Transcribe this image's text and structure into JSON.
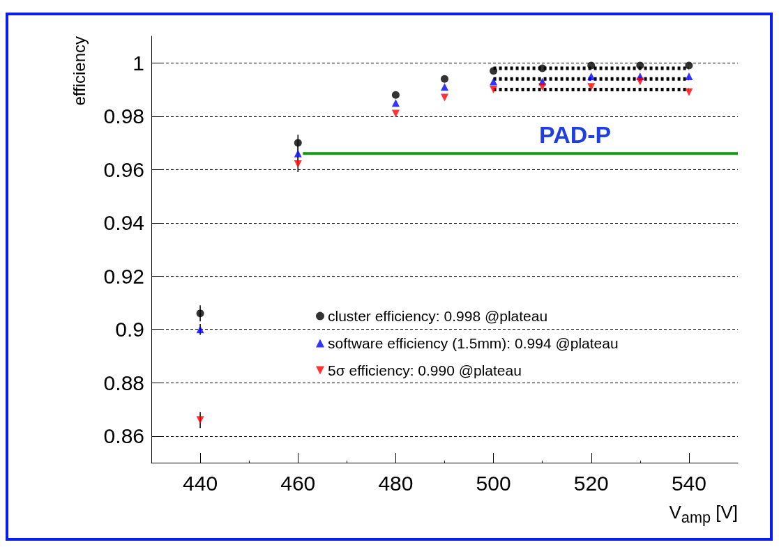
{
  "chart_data": {
    "type": "scatter",
    "xlabel": "V$_{amp}$ [V]",
    "ylabel": "efficiency",
    "xlim": [
      430,
      550
    ],
    "xticks": [
      440,
      460,
      480,
      500,
      520,
      540
    ],
    "ylim": [
      0.85,
      1.01
    ],
    "yticks": [
      0.86,
      0.88,
      0.9,
      0.92,
      0.94,
      0.96,
      0.98,
      1
    ],
    "grid": "y",
    "legend": "bottom",
    "annotations": [
      "PAD-P"
    ],
    "series": [
      {
        "name": "cluster efficiency: 0.998 @plateau",
        "color": "#000000",
        "marker": "circle",
        "x": [
          440,
          460,
          480,
          490,
          500,
          510,
          520,
          530,
          540
        ],
        "values": [
          0.906,
          0.97,
          0.988,
          0.994,
          0.997,
          0.998,
          0.999,
          0.999,
          0.999
        ],
        "errors": [
          0.003,
          0.003,
          null,
          null,
          null,
          null,
          null,
          null,
          null
        ]
      },
      {
        "name": "software efficiency (1.5mm): 0.994 @plateau",
        "color": "#0000ff",
        "marker": "triangle",
        "x": [
          440,
          460,
          480,
          490,
          500,
          510,
          520,
          530,
          540
        ],
        "values": [
          0.9,
          0.966,
          0.985,
          0.991,
          0.993,
          0.993,
          0.995,
          0.995,
          0.995
        ],
        "errors": [
          0.002,
          0.003,
          null,
          null,
          null,
          null,
          null,
          null,
          null
        ]
      },
      {
        "name": "5σ efficiency: 0.990 @plateau",
        "color": "#ff0000",
        "marker": "triangle-down",
        "x": [
          440,
          460,
          480,
          490,
          500,
          510,
          520,
          530,
          540
        ],
        "values": [
          0.866,
          0.962,
          0.981,
          0.987,
          0.99,
          0.991,
          0.991,
          0.993,
          0.989
        ],
        "errors": [
          0.003,
          0.003,
          null,
          null,
          null,
          null,
          null,
          null,
          null
        ]
      },
      {
        "type": "line",
        "color": "#000000",
        "line_style": "dotted",
        "marker": "none",
        "x": [
          500,
          540
        ],
        "values": [
          0.998,
          0.998
        ]
      },
      {
        "type": "line",
        "color": "#000000",
        "line_style": "dotted",
        "marker": "none",
        "x": [
          500,
          540
        ],
        "values": [
          0.994,
          0.994
        ]
      },
      {
        "type": "line",
        "color": "#000000",
        "line_style": "dotted",
        "marker": "none",
        "x": [
          500,
          540
        ],
        "values": [
          0.99,
          0.99
        ]
      },
      {
        "type": "line",
        "color": "#119911",
        "line_style": "solid",
        "marker": "none",
        "x": [
          461,
          550
        ],
        "values": [
          0.966,
          0.966
        ]
      }
    ]
  }
}
